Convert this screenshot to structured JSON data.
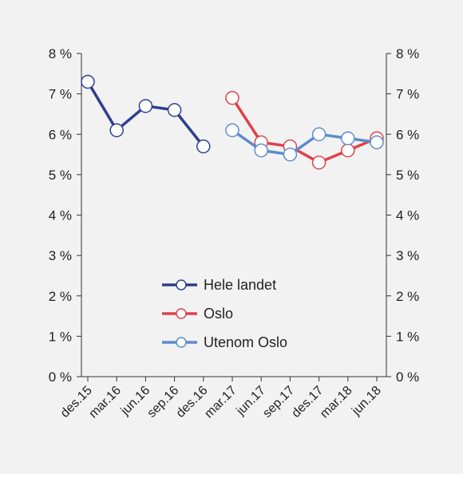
{
  "chart_data": {
    "type": "line",
    "categories": [
      "des.15",
      "mar.16",
      "jun.16",
      "sep.16",
      "des.16",
      "mar.17",
      "jun.17",
      "sep.17",
      "des.17",
      "mar.18",
      "jun.18"
    ],
    "y_ticks": [
      "0 %",
      "1 %",
      "2 %",
      "3 %",
      "4 %",
      "5 %",
      "6 %",
      "7 %",
      "8 %"
    ],
    "ylim": [
      0,
      8
    ],
    "grid": false,
    "legend_position": "bottom-center",
    "dual_y_axis": true,
    "series": [
      {
        "name": "Hele landet",
        "color": "#2e3f8f",
        "values": [
          7.3,
          6.1,
          6.7,
          6.6,
          5.7,
          null,
          null,
          null,
          null,
          null,
          null
        ]
      },
      {
        "name": "Oslo",
        "color": "#e0424b",
        "values": [
          null,
          null,
          null,
          null,
          null,
          6.9,
          5.8,
          5.7,
          5.3,
          5.6,
          5.9
        ]
      },
      {
        "name": "Utenom Oslo",
        "color": "#5b8ccc",
        "values": [
          null,
          null,
          null,
          null,
          null,
          6.1,
          5.6,
          5.5,
          6.0,
          5.9,
          5.8
        ]
      }
    ]
  }
}
